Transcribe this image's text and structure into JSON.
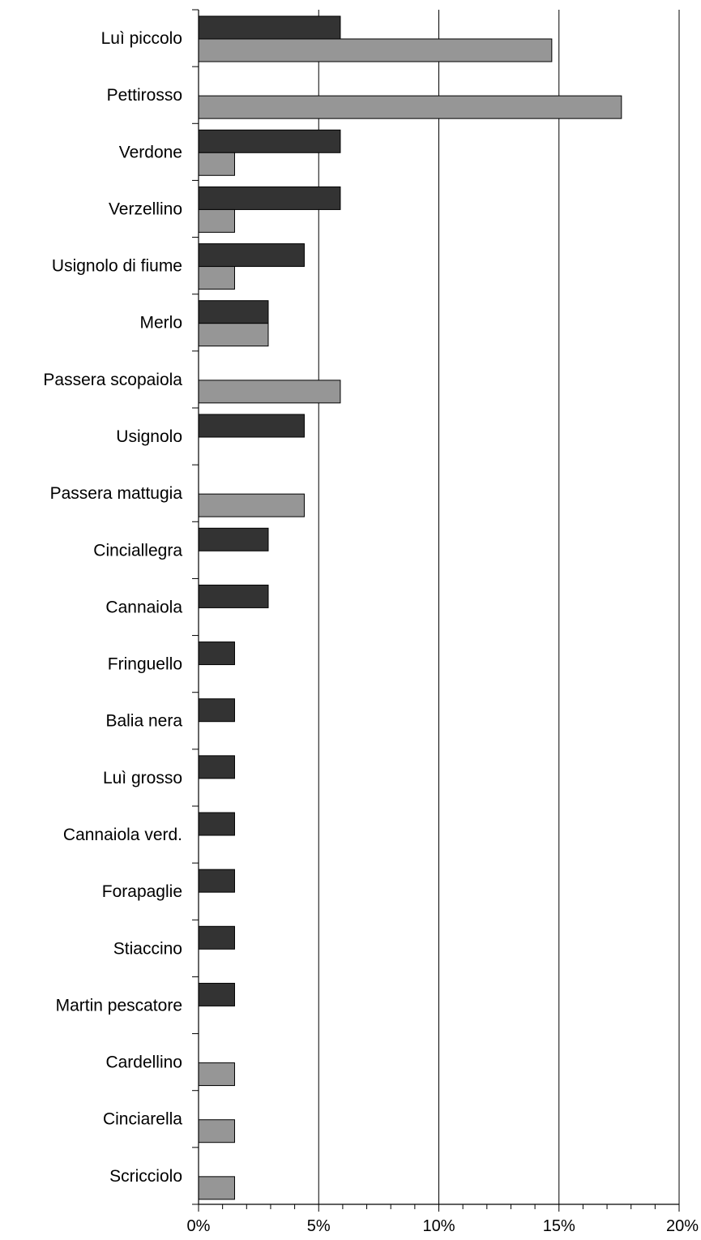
{
  "chart_data": {
    "type": "bar",
    "orientation": "horizontal",
    "categories": [
      "Luì piccolo",
      "Pettirosso",
      "Verdone",
      "Verzellino",
      "Usignolo di fiume",
      "Merlo",
      "Passera scopaiola",
      "Usignolo",
      "Passera mattugia",
      "Cinciallegra",
      "Cannaiola",
      "Fringuello",
      "Balia nera",
      "Luì grosso",
      "Cannaiola verd.",
      "Forapaglie",
      "Stiaccino",
      "Martin pescatore",
      "Cardellino",
      "Cinciarella",
      "Scricciolo"
    ],
    "series": [
      {
        "values": [
          5.9,
          0,
          5.9,
          5.9,
          4.4,
          2.9,
          0,
          4.4,
          0,
          2.9,
          2.9,
          1.5,
          1.5,
          1.5,
          1.5,
          1.5,
          1.5,
          1.5,
          0,
          0,
          0
        ]
      },
      {
        "values": [
          14.7,
          17.6,
          1.5,
          1.5,
          1.5,
          2.9,
          5.9,
          0,
          4.4,
          0,
          0,
          0,
          0,
          0,
          0,
          0,
          0,
          0,
          1.5,
          1.5,
          1.5
        ]
      }
    ],
    "xlim": [
      0,
      20
    ],
    "x_ticks": [
      "0%",
      "5%",
      "10%",
      "15%",
      "20%"
    ],
    "x_minor_step": 1,
    "grid": "vertical major lines at 5% steps",
    "legend": "none",
    "colors": [
      "#333333",
      "#969696"
    ]
  }
}
